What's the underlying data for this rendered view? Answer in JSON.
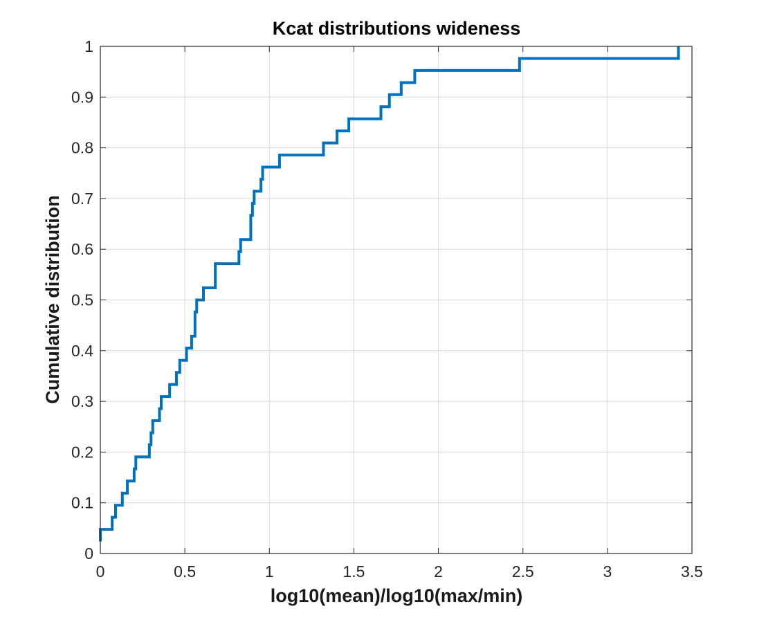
{
  "chart_data": {
    "type": "line",
    "subtype": "step (empirical CDF)",
    "title": "Kcat distributions wideness",
    "xlabel": "log10(mean)/log10(max/min)",
    "ylabel": "Cumulative distribution",
    "xlim": [
      0,
      3.5
    ],
    "ylim": [
      0,
      1
    ],
    "xticks": [
      0,
      0.5,
      1,
      1.5,
      2,
      2.5,
      3,
      3.5
    ],
    "xtick_labels": [
      "0",
      "0.5",
      "1",
      "1.5",
      "2",
      "2.5",
      "3",
      "3.5"
    ],
    "yticks": [
      0,
      0.1,
      0.2,
      0.3,
      0.4,
      0.5,
      0.6,
      0.7,
      0.8,
      0.9,
      1
    ],
    "ytick_labels": [
      "0",
      "0.1",
      "0.2",
      "0.3",
      "0.4",
      "0.5",
      "0.6",
      "0.7",
      "0.8",
      "0.9",
      "1"
    ],
    "grid": true,
    "legend": "none",
    "series": [
      {
        "color": "#0072BD",
        "x": [
          0.0,
          0.07,
          0.09,
          0.13,
          0.16,
          0.2,
          0.21,
          0.29,
          0.3,
          0.31,
          0.35,
          0.36,
          0.41,
          0.45,
          0.47,
          0.51,
          0.54,
          0.56,
          0.57,
          0.61,
          0.68,
          0.82,
          0.83,
          0.89,
          0.9,
          0.91,
          0.92,
          0.95,
          0.96,
          1.06,
          1.32,
          1.4,
          1.47,
          1.66,
          1.71,
          1.78,
          1.86,
          2.48,
          3.42
        ],
        "y": [
          0.0476,
          0.0714,
          0.0952,
          0.119,
          0.1429,
          0.1667,
          0.1905,
          0.2143,
          0.2381,
          0.2619,
          0.2857,
          0.3095,
          0.3333,
          0.3571,
          0.381,
          0.4048,
          0.4286,
          0.4762,
          0.5,
          0.5238,
          0.5714,
          0.5952,
          0.619,
          0.6667,
          0.6905,
          0.7143,
          0.7143,
          0.7381,
          0.7619,
          0.7857,
          0.8095,
          0.8333,
          0.8571,
          0.881,
          0.9048,
          0.9286,
          0.9524,
          0.9762,
          1.0
        ],
        "y_start": 0.0238
      }
    ]
  }
}
